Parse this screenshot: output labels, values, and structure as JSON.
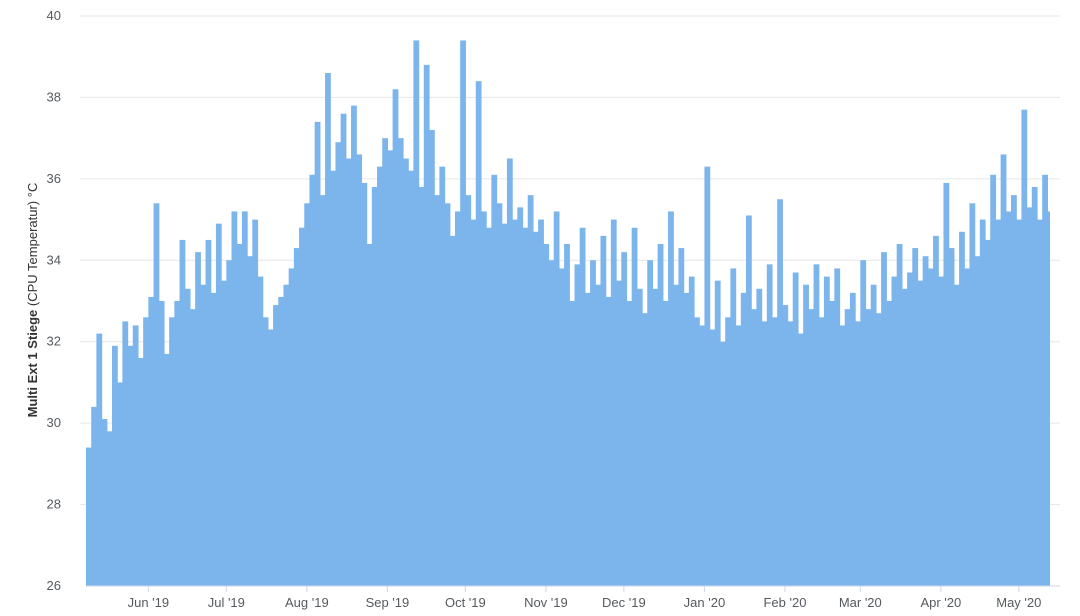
{
  "chart_data": {
    "type": "bar",
    "title": "",
    "ylabel_bold": "Multi Ext 1 Stiege",
    "ylabel_rest": " (CPU Temperatur) °C",
    "xlabel": "",
    "ylim": [
      26,
      40
    ],
    "yticks": [
      26,
      28,
      30,
      32,
      34,
      36,
      38,
      40
    ],
    "grid": true,
    "x_range": [
      "2019-05-08",
      "2020-05-13"
    ],
    "xticks": [
      {
        "label": "Jun '19",
        "date": "2019-06-01"
      },
      {
        "label": "Jul '19",
        "date": "2019-07-01"
      },
      {
        "label": "Aug '19",
        "date": "2019-08-01"
      },
      {
        "label": "Sep '19",
        "date": "2019-09-01"
      },
      {
        "label": "Oct '19",
        "date": "2019-10-01"
      },
      {
        "label": "Nov '19",
        "date": "2019-11-01"
      },
      {
        "label": "Dec '19",
        "date": "2019-12-01"
      },
      {
        "label": "Jan '20",
        "date": "2020-01-01"
      },
      {
        "label": "Feb '20",
        "date": "2020-02-01"
      },
      {
        "label": "Mar '20",
        "date": "2020-03-01"
      },
      {
        "label": "Apr '20",
        "date": "2020-04-01"
      },
      {
        "label": "May '20",
        "date": "2020-05-01"
      }
    ],
    "series": [
      {
        "color": "#7cb5ec",
        "points": [
          [
            "2019-05-08",
            29.4
          ],
          [
            "2019-05-10",
            30.4
          ],
          [
            "2019-05-12",
            32.2
          ],
          [
            "2019-05-14",
            30.1
          ],
          [
            "2019-05-16",
            29.8
          ],
          [
            "2019-05-18",
            31.9
          ],
          [
            "2019-05-20",
            31.0
          ],
          [
            "2019-05-22",
            32.5
          ],
          [
            "2019-05-24",
            31.9
          ],
          [
            "2019-05-26",
            32.4
          ],
          [
            "2019-05-28",
            31.6
          ],
          [
            "2019-05-30",
            32.6
          ],
          [
            "2019-06-01",
            33.1
          ],
          [
            "2019-06-03",
            35.4
          ],
          [
            "2019-06-05",
            33.0
          ],
          [
            "2019-06-07",
            31.7
          ],
          [
            "2019-06-09",
            32.6
          ],
          [
            "2019-06-11",
            33.0
          ],
          [
            "2019-06-13",
            34.5
          ],
          [
            "2019-06-15",
            33.3
          ],
          [
            "2019-06-17",
            32.8
          ],
          [
            "2019-06-19",
            34.2
          ],
          [
            "2019-06-21",
            33.4
          ],
          [
            "2019-06-23",
            34.5
          ],
          [
            "2019-06-25",
            33.2
          ],
          [
            "2019-06-27",
            34.9
          ],
          [
            "2019-06-29",
            33.5
          ],
          [
            "2019-07-01",
            34.0
          ],
          [
            "2019-07-03",
            35.2
          ],
          [
            "2019-07-05",
            34.4
          ],
          [
            "2019-07-07",
            35.2
          ],
          [
            "2019-07-09",
            34.1
          ],
          [
            "2019-07-11",
            35.0
          ],
          [
            "2019-07-13",
            33.6
          ],
          [
            "2019-07-15",
            32.6
          ],
          [
            "2019-07-17",
            32.3
          ],
          [
            "2019-07-19",
            32.9
          ],
          [
            "2019-07-21",
            33.1
          ],
          [
            "2019-07-23",
            33.4
          ],
          [
            "2019-07-25",
            33.8
          ],
          [
            "2019-07-27",
            34.3
          ],
          [
            "2019-07-29",
            34.8
          ],
          [
            "2019-07-31",
            35.4
          ],
          [
            "2019-08-02",
            36.1
          ],
          [
            "2019-08-04",
            37.4
          ],
          [
            "2019-08-06",
            35.6
          ],
          [
            "2019-08-08",
            38.6
          ],
          [
            "2019-08-10",
            36.2
          ],
          [
            "2019-08-12",
            36.9
          ],
          [
            "2019-08-14",
            37.6
          ],
          [
            "2019-08-16",
            36.5
          ],
          [
            "2019-08-18",
            37.8
          ],
          [
            "2019-08-20",
            36.6
          ],
          [
            "2019-08-22",
            35.9
          ],
          [
            "2019-08-24",
            34.4
          ],
          [
            "2019-08-26",
            35.8
          ],
          [
            "2019-08-28",
            36.3
          ],
          [
            "2019-08-30",
            37.0
          ],
          [
            "2019-09-01",
            36.7
          ],
          [
            "2019-09-03",
            38.2
          ],
          [
            "2019-09-05",
            37.0
          ],
          [
            "2019-09-07",
            36.5
          ],
          [
            "2019-09-09",
            36.2
          ],
          [
            "2019-09-11",
            39.4
          ],
          [
            "2019-09-13",
            35.8
          ],
          [
            "2019-09-15",
            38.8
          ],
          [
            "2019-09-17",
            37.2
          ],
          [
            "2019-09-19",
            35.6
          ],
          [
            "2019-09-21",
            36.3
          ],
          [
            "2019-09-23",
            35.4
          ],
          [
            "2019-09-25",
            34.6
          ],
          [
            "2019-09-27",
            35.2
          ],
          [
            "2019-09-29",
            39.4
          ],
          [
            "2019-10-01",
            35.6
          ],
          [
            "2019-10-03",
            35.0
          ],
          [
            "2019-10-05",
            38.4
          ],
          [
            "2019-10-07",
            35.2
          ],
          [
            "2019-10-09",
            34.8
          ],
          [
            "2019-10-11",
            36.1
          ],
          [
            "2019-10-13",
            35.4
          ],
          [
            "2019-10-15",
            34.9
          ],
          [
            "2019-10-17",
            36.5
          ],
          [
            "2019-10-19",
            35.0
          ],
          [
            "2019-10-21",
            35.3
          ],
          [
            "2019-10-23",
            34.8
          ],
          [
            "2019-10-25",
            35.6
          ],
          [
            "2019-10-27",
            34.7
          ],
          [
            "2019-10-29",
            35.0
          ],
          [
            "2019-10-31",
            34.4
          ],
          [
            "2019-11-02",
            34.0
          ],
          [
            "2019-11-04",
            35.2
          ],
          [
            "2019-11-06",
            33.8
          ],
          [
            "2019-11-08",
            34.4
          ],
          [
            "2019-11-10",
            33.0
          ],
          [
            "2019-11-12",
            33.9
          ],
          [
            "2019-11-14",
            34.8
          ],
          [
            "2019-11-16",
            33.2
          ],
          [
            "2019-11-18",
            34.0
          ],
          [
            "2019-11-20",
            33.4
          ],
          [
            "2019-11-22",
            34.6
          ],
          [
            "2019-11-24",
            33.1
          ],
          [
            "2019-11-26",
            35.0
          ],
          [
            "2019-11-28",
            33.5
          ],
          [
            "2019-11-30",
            34.2
          ],
          [
            "2019-12-02",
            33.0
          ],
          [
            "2019-12-04",
            34.8
          ],
          [
            "2019-12-06",
            33.3
          ],
          [
            "2019-12-08",
            32.7
          ],
          [
            "2019-12-10",
            34.0
          ],
          [
            "2019-12-12",
            33.3
          ],
          [
            "2019-12-14",
            34.4
          ],
          [
            "2019-12-16",
            33.0
          ],
          [
            "2019-12-18",
            35.2
          ],
          [
            "2019-12-20",
            33.4
          ],
          [
            "2019-12-22",
            34.3
          ],
          [
            "2019-12-24",
            33.2
          ],
          [
            "2019-12-26",
            33.6
          ],
          [
            "2019-12-28",
            32.6
          ],
          [
            "2019-12-30",
            32.4
          ],
          [
            "2020-01-01",
            36.3
          ],
          [
            "2020-01-03",
            32.3
          ],
          [
            "2020-01-05",
            33.5
          ],
          [
            "2020-01-07",
            32.0
          ],
          [
            "2020-01-09",
            32.6
          ],
          [
            "2020-01-11",
            33.8
          ],
          [
            "2020-01-13",
            32.4
          ],
          [
            "2020-01-15",
            33.2
          ],
          [
            "2020-01-17",
            35.1
          ],
          [
            "2020-01-19",
            32.8
          ],
          [
            "2020-01-21",
            33.3
          ],
          [
            "2020-01-23",
            32.5
          ],
          [
            "2020-01-25",
            33.9
          ],
          [
            "2020-01-27",
            32.6
          ],
          [
            "2020-01-29",
            35.5
          ],
          [
            "2020-01-31",
            32.9
          ],
          [
            "2020-02-02",
            32.5
          ],
          [
            "2020-02-04",
            33.7
          ],
          [
            "2020-02-06",
            32.2
          ],
          [
            "2020-02-08",
            33.4
          ],
          [
            "2020-02-10",
            32.8
          ],
          [
            "2020-02-12",
            33.9
          ],
          [
            "2020-02-14",
            32.6
          ],
          [
            "2020-02-16",
            33.6
          ],
          [
            "2020-02-18",
            33.0
          ],
          [
            "2020-02-20",
            33.8
          ],
          [
            "2020-02-22",
            32.4
          ],
          [
            "2020-02-24",
            32.8
          ],
          [
            "2020-02-26",
            33.2
          ],
          [
            "2020-02-28",
            32.5
          ],
          [
            "2020-03-01",
            34.0
          ],
          [
            "2020-03-03",
            32.8
          ],
          [
            "2020-03-05",
            33.4
          ],
          [
            "2020-03-07",
            32.7
          ],
          [
            "2020-03-09",
            34.2
          ],
          [
            "2020-03-11",
            33.0
          ],
          [
            "2020-03-13",
            33.6
          ],
          [
            "2020-03-15",
            34.4
          ],
          [
            "2020-03-17",
            33.3
          ],
          [
            "2020-03-19",
            33.7
          ],
          [
            "2020-03-21",
            34.3
          ],
          [
            "2020-03-23",
            33.5
          ],
          [
            "2020-03-25",
            34.1
          ],
          [
            "2020-03-27",
            33.8
          ],
          [
            "2020-03-29",
            34.6
          ],
          [
            "2020-03-31",
            33.6
          ],
          [
            "2020-04-02",
            35.9
          ],
          [
            "2020-04-04",
            34.3
          ],
          [
            "2020-04-06",
            33.4
          ],
          [
            "2020-04-08",
            34.7
          ],
          [
            "2020-04-10",
            33.8
          ],
          [
            "2020-04-12",
            35.4
          ],
          [
            "2020-04-14",
            34.1
          ],
          [
            "2020-04-16",
            35.0
          ],
          [
            "2020-04-18",
            34.5
          ],
          [
            "2020-04-20",
            36.1
          ],
          [
            "2020-04-22",
            35.0
          ],
          [
            "2020-04-24",
            36.6
          ],
          [
            "2020-04-26",
            35.2
          ],
          [
            "2020-04-28",
            35.6
          ],
          [
            "2020-04-30",
            35.0
          ],
          [
            "2020-05-02",
            37.7
          ],
          [
            "2020-05-04",
            35.3
          ],
          [
            "2020-05-06",
            35.8
          ],
          [
            "2020-05-08",
            35.0
          ],
          [
            "2020-05-10",
            36.1
          ],
          [
            "2020-05-12",
            35.2
          ]
        ]
      }
    ]
  }
}
